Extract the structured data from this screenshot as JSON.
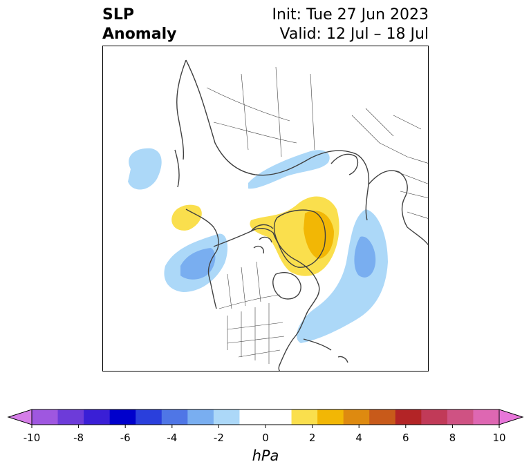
{
  "title": {
    "line1": "SLP",
    "line2": "Anomaly",
    "init": "Init: Tue 27 Jun 2023",
    "valid": "Valid: 12 Jul – 18 Jul"
  },
  "colorbar": {
    "unit": "hPa",
    "ticks": [
      "-10",
      "-8",
      "-6",
      "-4",
      "-2",
      "0",
      "2",
      "4",
      "6",
      "8",
      "10"
    ],
    "min": -10,
    "max": 10,
    "colors": [
      "#d57ee8",
      "#9f57e0",
      "#6d3bd9",
      "#3a1fd6",
      "#0000cc",
      "#2a3fdc",
      "#4f76e6",
      "#79aef0",
      "#acd8f8",
      "#ffffff",
      "#ffffff",
      "#fadf4d",
      "#f2b705",
      "#de8a10",
      "#c85a1a",
      "#b32426",
      "#c13a58",
      "#cf5283",
      "#de67b2",
      "#e776d9"
    ],
    "extend": "both"
  },
  "colors": {
    "coast": "#404040",
    "border": "#404040",
    "light_blue": "#acd8f8",
    "mid_blue": "#79aef0",
    "yellow": "#fadf4d",
    "gold": "#f2b705"
  },
  "map": {
    "projection": "north-polar-stereographic",
    "anomalies": [
      {
        "sign": "negative",
        "region": "north-pacific",
        "max_level": -3
      },
      {
        "sign": "negative",
        "region": "north-atlantic",
        "max_level": -3
      },
      {
        "sign": "negative",
        "region": "northwest-pacific",
        "max_level": -1
      },
      {
        "sign": "negative",
        "region": "barents-kara",
        "max_level": -1
      },
      {
        "sign": "positive",
        "region": "greenland",
        "max_level": 3
      },
      {
        "sign": "positive",
        "region": "east-siberian-sea",
        "max_level": 1
      }
    ]
  }
}
